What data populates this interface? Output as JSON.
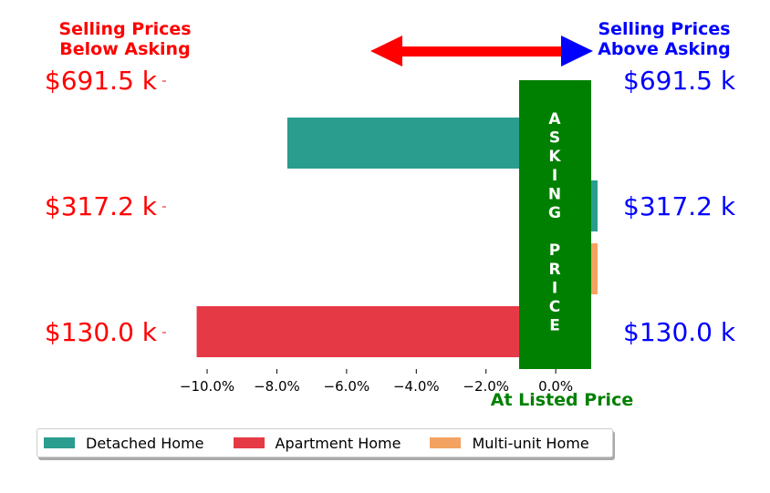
{
  "chart_data": {
    "type": "bar",
    "orientation": "horizontal",
    "price_levels": [
      "$691.5 k",
      "$317.2 k",
      "$130.0 k"
    ],
    "series": [
      {
        "name": "Detached Home",
        "color": "#2a9d8f",
        "values": [
          -7.7,
          1.2,
          null
        ]
      },
      {
        "name": "Apartment Home",
        "color": "#e63946",
        "values": [
          null,
          null,
          -10.3
        ]
      },
      {
        "name": "Multi-unit Home",
        "color": "#f4a261",
        "values": [
          null,
          1.2,
          null
        ]
      }
    ],
    "xlim": [
      -11.1,
      1.2
    ],
    "xticks": [
      -10,
      -8,
      -6,
      -4,
      -2,
      0
    ],
    "xtick_labels": [
      "−10.0%",
      "−8.0%",
      "−6.0%",
      "−4.0%",
      "−2.0%",
      "0.0%"
    ],
    "left_title": [
      "Selling Prices",
      "Below Asking"
    ],
    "right_title": [
      "Selling Prices",
      "Above Asking"
    ],
    "left_color": "#ff0000",
    "right_color": "#0000ff",
    "asking_label": [
      "A",
      "S",
      "K",
      "I",
      "N",
      "G",
      "",
      "P",
      "R",
      "I",
      "C",
      "E"
    ],
    "asking_color": "#008000",
    "xlabel": "At Listed Price",
    "legend_position": "bottom-left"
  }
}
